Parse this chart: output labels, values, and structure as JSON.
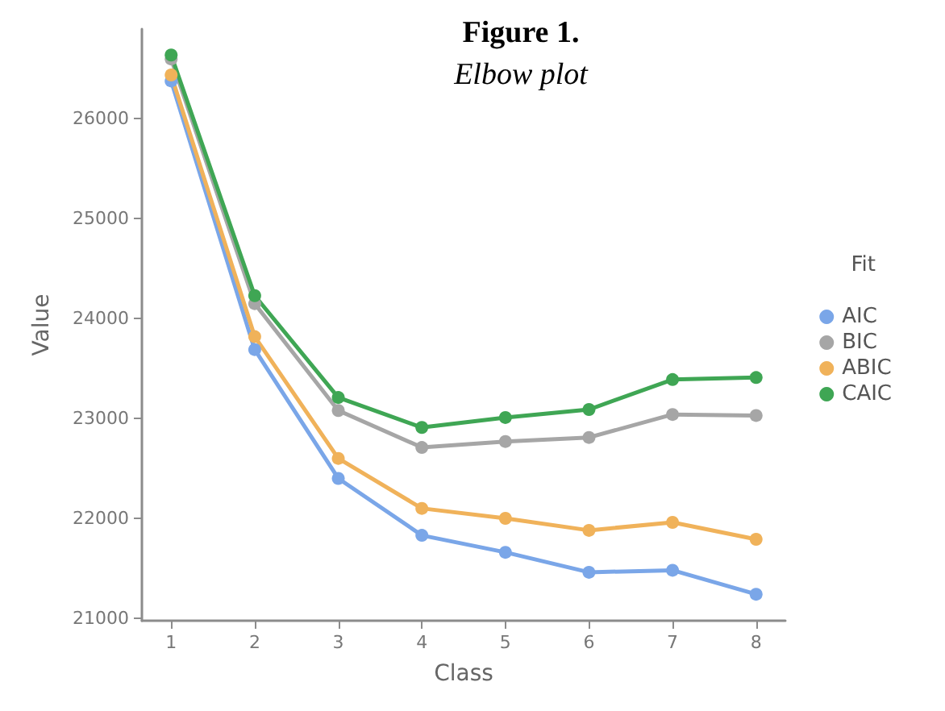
{
  "chart_data": {
    "type": "line",
    "title": "Figure 1.",
    "subtitle": "Elbow plot",
    "xlabel": "Class",
    "ylabel": "Value",
    "legend_title": "Fit",
    "legend": "right",
    "grid": false,
    "marker": "circle",
    "line_style": "solid",
    "x": [
      1,
      2,
      3,
      4,
      5,
      6,
      7,
      8
    ],
    "xlim": [
      0.65,
      8.35
    ],
    "xticks": [
      1,
      2,
      3,
      4,
      5,
      6,
      7,
      8
    ],
    "ylim": [
      20975,
      26900
    ],
    "yticks": [
      21000,
      22000,
      23000,
      24000,
      25000,
      26000
    ],
    "series": [
      {
        "name": "AIC",
        "color": "#7aa6e8",
        "values": [
          26380,
          23690,
          22400,
          21830,
          21660,
          21460,
          21480,
          21240
        ]
      },
      {
        "name": "BIC",
        "color": "#a6a6a6",
        "values": [
          26600,
          24150,
          23080,
          22710,
          22770,
          22810,
          23040,
          23030
        ]
      },
      {
        "name": "ABIC",
        "color": "#f0b25a",
        "values": [
          26440,
          23820,
          22600,
          22100,
          22000,
          21880,
          21960,
          21790
        ]
      },
      {
        "name": "CAIC",
        "color": "#3fa654",
        "values": [
          26640,
          24230,
          23210,
          22910,
          23010,
          23090,
          23390,
          23410
        ]
      }
    ]
  }
}
